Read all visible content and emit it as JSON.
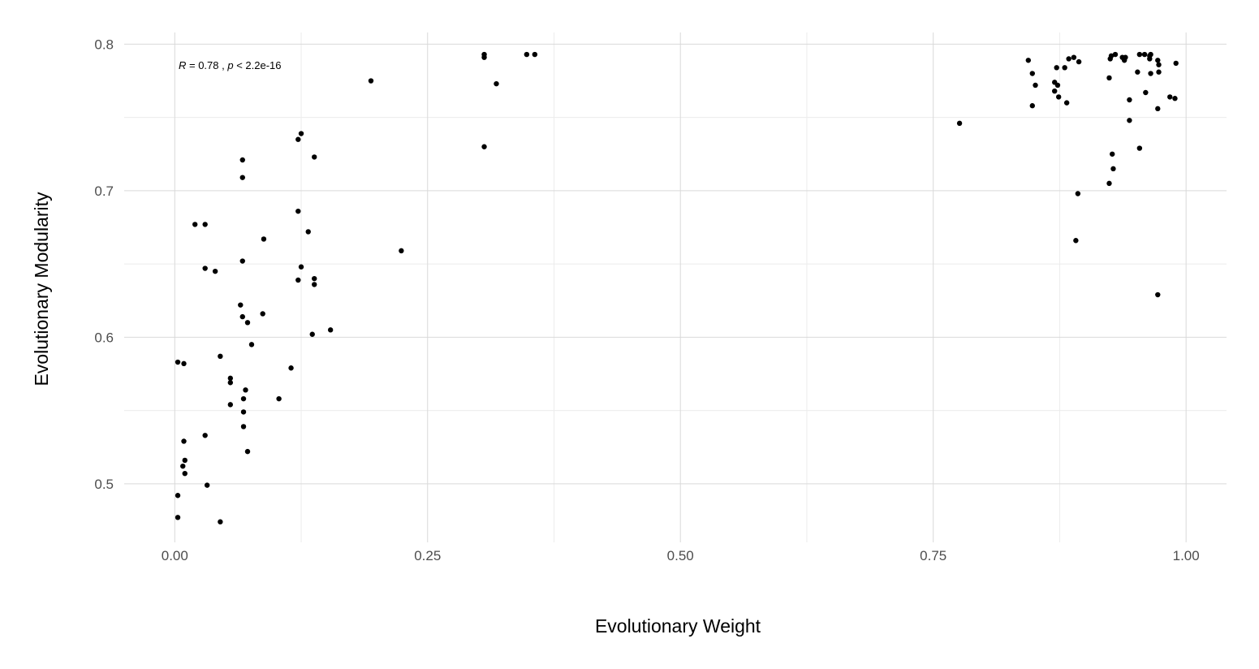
{
  "chart_data": {
    "type": "scatter",
    "xlabel": "Evolutionary Weight",
    "ylabel": "Evolutionary Modularity",
    "xlim": [
      -0.05,
      1.04
    ],
    "ylim": [
      0.46,
      0.808
    ],
    "x_ticks": [
      0.0,
      0.25,
      0.5,
      0.75,
      1.0
    ],
    "x_tick_labels": [
      "0.00",
      "0.25",
      "0.50",
      "0.75",
      "1.00"
    ],
    "y_ticks": [
      0.5,
      0.6,
      0.7,
      0.8
    ],
    "y_tick_labels": [
      "0.5",
      "0.6",
      "0.7",
      "0.8"
    ],
    "grid": true,
    "annotation": {
      "r_symbol": "R",
      "r_text": " = 0.78 , ",
      "p_symbol": "p",
      "p_text": " < 2.2e-16"
    },
    "point_color": "#000000",
    "points": [
      [
        0.003,
        0.583
      ],
      [
        0.009,
        0.582
      ],
      [
        0.003,
        0.492
      ],
      [
        0.003,
        0.477
      ],
      [
        0.008,
        0.512
      ],
      [
        0.01,
        0.516
      ],
      [
        0.01,
        0.507
      ],
      [
        0.009,
        0.529
      ],
      [
        0.02,
        0.677
      ],
      [
        0.03,
        0.677
      ],
      [
        0.03,
        0.647
      ],
      [
        0.03,
        0.533
      ],
      [
        0.032,
        0.499
      ],
      [
        0.04,
        0.645
      ],
      [
        0.045,
        0.587
      ],
      [
        0.045,
        0.474
      ],
      [
        0.055,
        0.572
      ],
      [
        0.055,
        0.569
      ],
      [
        0.055,
        0.554
      ],
      [
        0.065,
        0.622
      ],
      [
        0.067,
        0.614
      ],
      [
        0.067,
        0.652
      ],
      [
        0.067,
        0.721
      ],
      [
        0.067,
        0.709
      ],
      [
        0.068,
        0.558
      ],
      [
        0.068,
        0.549
      ],
      [
        0.068,
        0.539
      ],
      [
        0.07,
        0.564
      ],
      [
        0.072,
        0.522
      ],
      [
        0.072,
        0.61
      ],
      [
        0.076,
        0.595
      ],
      [
        0.087,
        0.616
      ],
      [
        0.088,
        0.667
      ],
      [
        0.103,
        0.558
      ],
      [
        0.115,
        0.579
      ],
      [
        0.122,
        0.735
      ],
      [
        0.122,
        0.686
      ],
      [
        0.122,
        0.639
      ],
      [
        0.125,
        0.648
      ],
      [
        0.125,
        0.739
      ],
      [
        0.132,
        0.672
      ],
      [
        0.136,
        0.602
      ],
      [
        0.138,
        0.723
      ],
      [
        0.138,
        0.64
      ],
      [
        0.138,
        0.636
      ],
      [
        0.154,
        0.605
      ],
      [
        0.194,
        0.775
      ],
      [
        0.224,
        0.659
      ],
      [
        0.306,
        0.793
      ],
      [
        0.306,
        0.791
      ],
      [
        0.306,
        0.73
      ],
      [
        0.318,
        0.773
      ],
      [
        0.348,
        0.793
      ],
      [
        0.356,
        0.793
      ],
      [
        0.776,
        0.746
      ],
      [
        0.844,
        0.789
      ],
      [
        0.848,
        0.78
      ],
      [
        0.848,
        0.758
      ],
      [
        0.851,
        0.772
      ],
      [
        0.87,
        0.774
      ],
      [
        0.87,
        0.768
      ],
      [
        0.872,
        0.784
      ],
      [
        0.873,
        0.772
      ],
      [
        0.874,
        0.764
      ],
      [
        0.88,
        0.784
      ],
      [
        0.882,
        0.76
      ],
      [
        0.884,
        0.79
      ],
      [
        0.889,
        0.791
      ],
      [
        0.891,
        0.666
      ],
      [
        0.893,
        0.698
      ],
      [
        0.894,
        0.788
      ],
      [
        0.924,
        0.705
      ],
      [
        0.924,
        0.777
      ],
      [
        0.925,
        0.79
      ],
      [
        0.926,
        0.792
      ],
      [
        0.927,
        0.725
      ],
      [
        0.928,
        0.715
      ],
      [
        0.93,
        0.793
      ],
      [
        0.937,
        0.791
      ],
      [
        0.939,
        0.789
      ],
      [
        0.94,
        0.791
      ],
      [
        0.944,
        0.748
      ],
      [
        0.944,
        0.762
      ],
      [
        0.952,
        0.781
      ],
      [
        0.954,
        0.729
      ],
      [
        0.954,
        0.793
      ],
      [
        0.959,
        0.793
      ],
      [
        0.96,
        0.767
      ],
      [
        0.964,
        0.792
      ],
      [
        0.964,
        0.79
      ],
      [
        0.965,
        0.78
      ],
      [
        0.965,
        0.793
      ],
      [
        0.972,
        0.629
      ],
      [
        0.972,
        0.756
      ],
      [
        0.972,
        0.789
      ],
      [
        0.973,
        0.786
      ],
      [
        0.973,
        0.781
      ],
      [
        0.984,
        0.764
      ],
      [
        0.989,
        0.763
      ],
      [
        0.99,
        0.787
      ]
    ]
  }
}
